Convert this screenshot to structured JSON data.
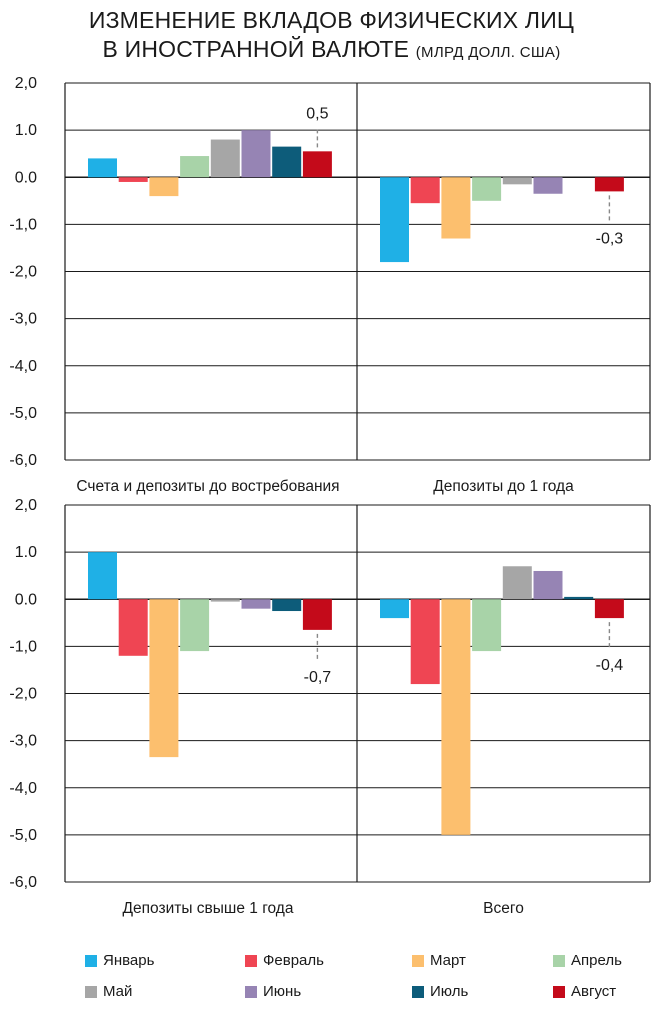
{
  "title": {
    "line1": "ИЗМЕНЕНИЕ ВКЛАДОВ ФИЗИЧЕСКИХ ЛИЦ",
    "line2": "В ИНОСТРАННОЙ ВАЛЮТЕ",
    "units": "(МЛРД ДОЛЛ. США)"
  },
  "series_colors": {
    "Январь": "#1fb0e6",
    "Февраль": "#ef4553",
    "Март": "#fcbf6e",
    "Апрель": "#a8d3a8",
    "Май": "#a6a6a6",
    "Июнь": "#9684b4",
    "Июль": "#0d5c7a",
    "Август": "#c40a1a"
  },
  "legend": [
    "Январь",
    "Февраль",
    "Март",
    "Апрель",
    "Май",
    "Июнь",
    "Июль",
    "Август"
  ],
  "chart_data": {
    "type": "bar",
    "series_names": [
      "Январь",
      "Февраль",
      "Март",
      "Апрель",
      "Май",
      "Июнь",
      "Июль",
      "Август"
    ],
    "ylim": [
      -6,
      2
    ],
    "yticks": [
      "2,0",
      "1.0",
      "0.0",
      "-1,0",
      "-2,0",
      "-3,0",
      "-4,0",
      "-5,0",
      "-6,0"
    ],
    "panels": [
      {
        "label": "Счета и депозиты до востребования",
        "values": [
          0.4,
          -0.1,
          -0.4,
          0.45,
          0.8,
          1.0,
          0.65,
          0.55
        ],
        "annotation": "0,5"
      },
      {
        "label": "Депозиты до 1 года",
        "values": [
          -1.8,
          -0.55,
          -1.3,
          -0.5,
          -0.15,
          -0.35,
          0.0,
          -0.3
        ],
        "annotation": "-0,3"
      },
      {
        "label": "Депозиты свыше 1 года",
        "values": [
          1.0,
          -1.2,
          -3.35,
          -1.1,
          -0.05,
          -0.2,
          -0.25,
          -0.65
        ],
        "annotation": "-0,7"
      },
      {
        "label": "Всего",
        "values": [
          -0.4,
          -1.8,
          -5.0,
          -1.1,
          0.7,
          0.6,
          0.05,
          -0.4
        ],
        "annotation": "-0,4"
      }
    ]
  }
}
